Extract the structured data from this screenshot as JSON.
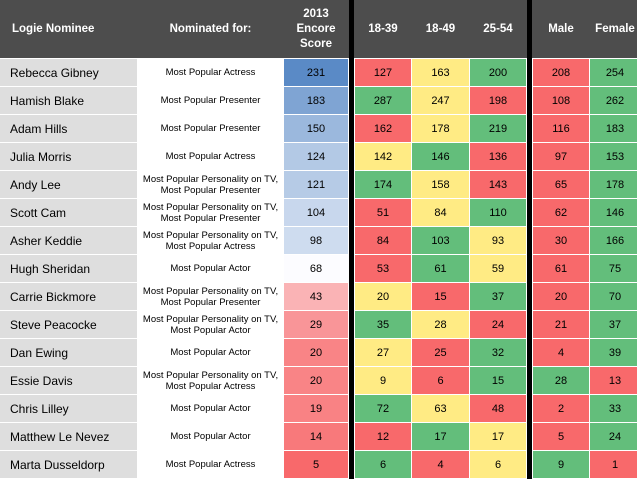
{
  "chart_data": {
    "type": "table",
    "columns": [
      "Logie Nominee",
      "Nominated for:",
      "2013\nEncore\nScore",
      "18-39",
      "18-49",
      "25-54",
      "Male",
      "Female"
    ],
    "rows": [
      {
        "name": "Rebecca Gibney",
        "nominated_for": "Most Popular Actress",
        "score": 231,
        "a18_39": 127,
        "a18_49": 163,
        "a25_54": 200,
        "male": 208,
        "female": 254
      },
      {
        "name": "Hamish Blake",
        "nominated_for": "Most Popular Presenter",
        "score": 183,
        "a18_39": 287,
        "a18_49": 247,
        "a25_54": 198,
        "male": 108,
        "female": 262
      },
      {
        "name": "Adam Hills",
        "nominated_for": "Most Popular Presenter",
        "score": 150,
        "a18_39": 162,
        "a18_49": 178,
        "a25_54": 219,
        "male": 116,
        "female": 183
      },
      {
        "name": "Julia Morris",
        "nominated_for": "Most Popular Actress",
        "score": 124,
        "a18_39": 142,
        "a18_49": 146,
        "a25_54": 136,
        "male": 97,
        "female": 153
      },
      {
        "name": "Andy Lee",
        "nominated_for": "Most Popular Personality on TV,\nMost Popular Presenter",
        "score": 121,
        "a18_39": 174,
        "a18_49": 158,
        "a25_54": 143,
        "male": 65,
        "female": 178
      },
      {
        "name": "Scott Cam",
        "nominated_for": "Most Popular Personality on TV,\nMost Popular Presenter",
        "score": 104,
        "a18_39": 51,
        "a18_49": 84,
        "a25_54": 110,
        "male": 62,
        "female": 146
      },
      {
        "name": "Asher Keddie",
        "nominated_for": "Most Popular Personality on TV,\nMost Popular Actress",
        "score": 98,
        "a18_39": 84,
        "a18_49": 103,
        "a25_54": 93,
        "male": 30,
        "female": 166
      },
      {
        "name": "Hugh Sheridan",
        "nominated_for": "Most Popular Actor",
        "score": 68,
        "a18_39": 53,
        "a18_49": 61,
        "a25_54": 59,
        "male": 61,
        "female": 75
      },
      {
        "name": "Carrie Bickmore",
        "nominated_for": "Most Popular Personality on TV,\nMost Popular Presenter",
        "score": 43,
        "a18_39": 20,
        "a18_49": 15,
        "a25_54": 37,
        "male": 20,
        "female": 70
      },
      {
        "name": "Steve Peacocke",
        "nominated_for": "Most Popular Personality on TV,\nMost Popular Actor",
        "score": 29,
        "a18_39": 35,
        "a18_49": 28,
        "a25_54": 24,
        "male": 21,
        "female": 37
      },
      {
        "name": "Dan Ewing",
        "nominated_for": "Most Popular Actor",
        "score": 20,
        "a18_39": 27,
        "a18_49": 25,
        "a25_54": 32,
        "male": 4,
        "female": 39
      },
      {
        "name": "Essie Davis",
        "nominated_for": "Most Popular Personality on TV,\nMost Popular Actress",
        "score": 20,
        "a18_39": 9,
        "a18_49": 6,
        "a25_54": 15,
        "male": 28,
        "female": 13
      },
      {
        "name": "Chris Lilley",
        "nominated_for": "Most Popular Actor",
        "score": 19,
        "a18_39": 72,
        "a18_49": 63,
        "a25_54": 48,
        "male": 2,
        "female": 33
      },
      {
        "name": "Matthew Le Nevez",
        "nominated_for": "Most Popular Actor",
        "score": 14,
        "a18_39": 12,
        "a18_49": 17,
        "a25_54": 17,
        "male": 5,
        "female": 24
      },
      {
        "name": "Marta Dusseldorp",
        "nominated_for": "Most Popular Actress",
        "score": 5,
        "a18_39": 6,
        "a18_49": 4,
        "a25_54": 6,
        "male": 9,
        "female": 1
      }
    ],
    "colors": {
      "header_bg": "#4d4d4d",
      "name_bg": "#dedede",
      "green": "#63be7b",
      "yellow": "#ffeb84",
      "red": "#f8696b",
      "score_high": "#5a8ac6",
      "score_mid": "#fcfcff",
      "score_low": "#f8696b"
    }
  }
}
